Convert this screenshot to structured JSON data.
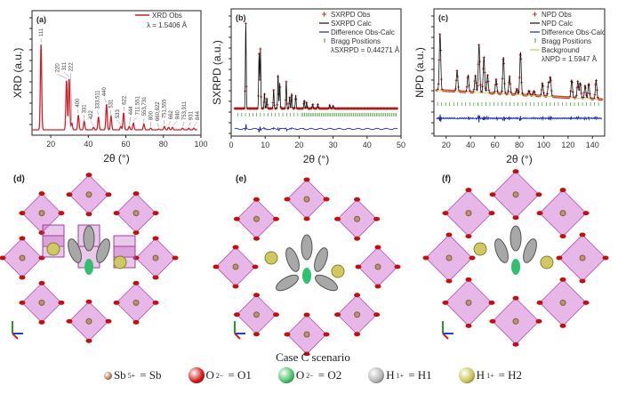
{
  "chart_data": [
    {
      "type": "line",
      "panel": "(a)",
      "xlabel": "2θ (°)",
      "ylabel": "XRD (a.u.)",
      "xlim": [
        10,
        100
      ],
      "xticks": [
        20,
        40,
        60,
        80,
        100
      ],
      "legend": [
        "XRD Obs"
      ],
      "annotation": "λ = 1.5406 Å",
      "color": "#d0202a",
      "peaks": [
        {
          "hkl": "111",
          "x": 14.8,
          "y": 100
        },
        {
          "hkl": "220",
          "x": 28.4,
          "y": 58
        },
        {
          "hkl": "311",
          "x": 29.8,
          "y": 60
        },
        {
          "hkl": "222",
          "x": 31.2,
          "y": 8
        },
        {
          "hkl": "400",
          "x": 34.7,
          "y": 17
        },
        {
          "hkl": "331",
          "x": 37.8,
          "y": 10
        },
        {
          "hkl": "422",
          "x": 42.8,
          "y": 3
        },
        {
          "hkl": "333,511",
          "x": 45.4,
          "y": 15
        },
        {
          "hkl": "440",
          "x": 49.7,
          "y": 30
        },
        {
          "hkl": "531",
          "x": 52.1,
          "y": 16
        },
        {
          "hkl": "533",
          "x": 57.3,
          "y": 4
        },
        {
          "hkl": "622",
          "x": 58.8,
          "y": 20
        },
        {
          "hkl": "444",
          "x": 61.8,
          "y": 4
        },
        {
          "hkl": "711,551",
          "x": 64.0,
          "y": 8
        },
        {
          "hkl": "553,731",
          "x": 69.6,
          "y": 7
        },
        {
          "hkl": "800",
          "x": 73.2,
          "y": 2
        },
        {
          "hkl": "660,822",
          "x": 77.5,
          "y": 1
        },
        {
          "hkl": "751,555",
          "x": 80.5,
          "y": 4
        },
        {
          "hkl": "662",
          "x": 82.8,
          "y": 3
        },
        {
          "hkl": "840",
          "x": 84.8,
          "y": 3
        },
        {
          "hkl": "753,911",
          "x": 90.2,
          "y": 2
        },
        {
          "hkl": "931",
          "x": 93.5,
          "y": 2
        },
        {
          "hkl": "844",
          "x": 96.2,
          "y": 2
        }
      ]
    },
    {
      "type": "line",
      "panel": "(b)",
      "xlabel": "2θ (°)",
      "ylabel": "SXRPD (a.u.)",
      "xlim": [
        0,
        50
      ],
      "xticks": [
        0,
        10,
        20,
        30,
        40,
        50
      ],
      "legend": [
        "SXRPD Obs",
        "SXRPD Calc",
        "Difference Obs-Calc",
        "Bragg Positions"
      ],
      "annotation": "λSXRPD = 0.44271 Å",
      "peaks": [
        {
          "x": 4.3,
          "y": 100
        },
        {
          "x": 8.2,
          "y": 64
        },
        {
          "x": 8.6,
          "y": 70
        },
        {
          "x": 9.8,
          "y": 18
        },
        {
          "x": 10.5,
          "y": 12
        },
        {
          "x": 12.5,
          "y": 22
        },
        {
          "x": 13.8,
          "y": 40
        },
        {
          "x": 14.3,
          "y": 30
        },
        {
          "x": 16.2,
          "y": 32
        },
        {
          "x": 17.2,
          "y": 14
        },
        {
          "x": 17.8,
          "y": 18
        },
        {
          "x": 19.0,
          "y": 16
        },
        {
          "x": 21.5,
          "y": 10
        },
        {
          "x": 22.2,
          "y": 7
        },
        {
          "x": 24.0,
          "y": 5
        },
        {
          "x": 25.5,
          "y": 5
        },
        {
          "x": 29.0,
          "y": 4
        },
        {
          "x": 30.0,
          "y": 3
        }
      ]
    },
    {
      "type": "line",
      "panel": "(c)",
      "xlabel": "2θ (°)",
      "ylabel": "NPD (a.u.)",
      "xlim": [
        10,
        150
      ],
      "xticks": [
        20,
        40,
        60,
        80,
        100,
        120,
        140
      ],
      "legend": [
        "NPD Obs",
        "NPD Calc",
        "Difference Obs-Calc",
        "Bragg Positions",
        "Background"
      ],
      "annotation": "λNPD = 1.5947 Å",
      "background": [
        [
          10,
          100
        ],
        [
          150,
          60
        ]
      ],
      "peaks": [
        {
          "x": 15,
          "y": 95
        },
        {
          "x": 29,
          "y": 35
        },
        {
          "x": 38,
          "y": 28
        },
        {
          "x": 44,
          "y": 28
        },
        {
          "x": 47,
          "y": 80
        },
        {
          "x": 51,
          "y": 60
        },
        {
          "x": 54,
          "y": 30
        },
        {
          "x": 61,
          "y": 24
        },
        {
          "x": 67,
          "y": 62
        },
        {
          "x": 72,
          "y": 30
        },
        {
          "x": 78,
          "y": 10
        },
        {
          "x": 81,
          "y": 72
        },
        {
          "x": 88,
          "y": 8
        },
        {
          "x": 92,
          "y": 8
        },
        {
          "x": 99,
          "y": 22
        },
        {
          "x": 104,
          "y": 22
        },
        {
          "x": 105.5,
          "y": 32
        },
        {
          "x": 123,
          "y": 30
        },
        {
          "x": 128,
          "y": 28
        },
        {
          "x": 130,
          "y": 26
        },
        {
          "x": 134,
          "y": 22
        },
        {
          "x": 137,
          "y": 26
        },
        {
          "x": 143,
          "y": 32
        }
      ]
    }
  ],
  "panels": {
    "d": "(d)",
    "e": "(e)",
    "f": "(f)"
  },
  "caption": "Case C scenario",
  "legend": [
    {
      "sym": "Sb",
      "sup": "5+",
      "rhs": "= Sb",
      "color": "#b07850"
    },
    {
      "sym": "O",
      "sup": "2−",
      "rhs": "= O1",
      "color": "#d01010"
    },
    {
      "sym": "O",
      "sup": "2−",
      "rhs": "= O2",
      "color": "#40c060"
    },
    {
      "sym": "H",
      "sup": "1+",
      "rhs": "= H1",
      "color": "#b0b0b0"
    },
    {
      "sym": "H",
      "sup": "1+",
      "rhs": "= H2",
      "color": "#c8c050"
    }
  ]
}
